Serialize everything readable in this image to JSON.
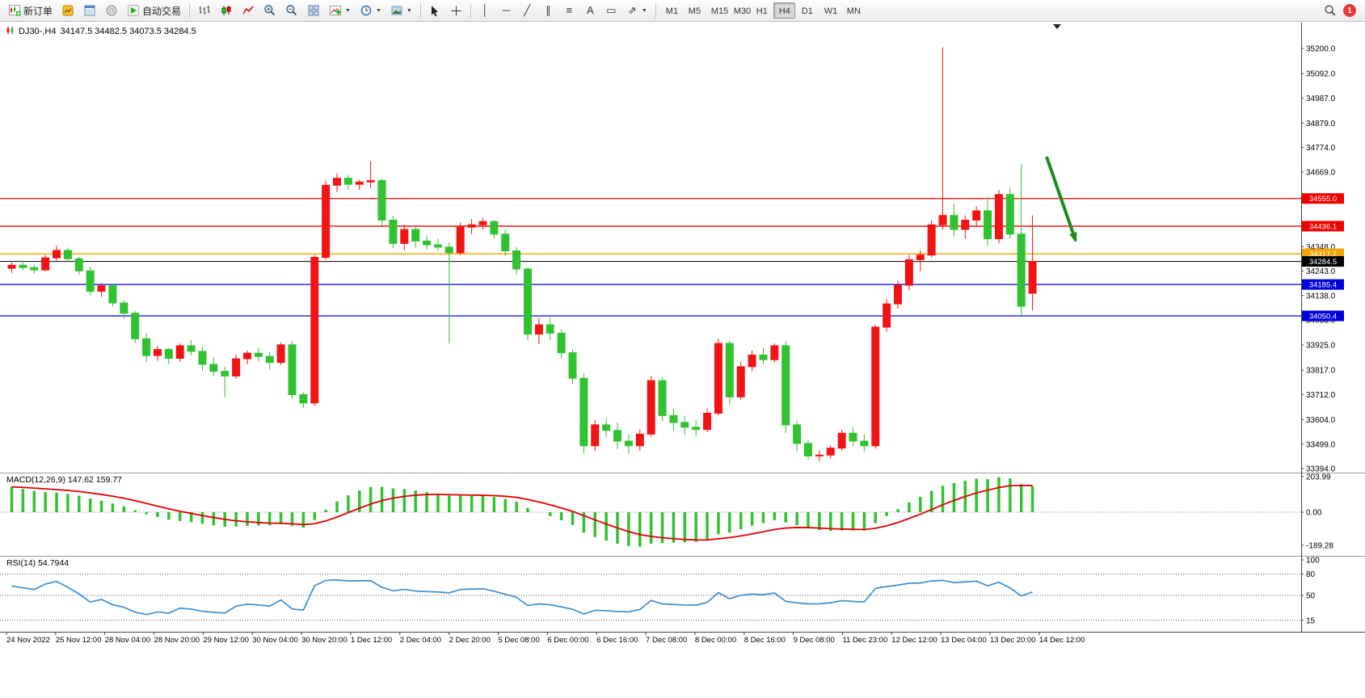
{
  "toolbar": {
    "new_order": "新订单",
    "autotrading": "自动交易",
    "timeframes": [
      "M1",
      "M5",
      "M15",
      "M30",
      "H1",
      "H4",
      "D1",
      "W1",
      "MN"
    ],
    "active_timeframe": "H4",
    "notification_count": "1"
  },
  "chart": {
    "title_symbol": "DJ30-,H4",
    "title_ohlc": "34147.5 34482.5 34073.5 34284.5",
    "price_axis_labels": [
      "35200.0",
      "35092.0",
      "34987.0",
      "34879.0",
      "34774.0",
      "34669.0",
      "34348.0",
      "34243.0",
      "34138.0",
      "34033.0",
      "33925.0",
      "33817.0",
      "33712.0",
      "33604.0",
      "33499.0",
      "33394.0"
    ],
    "time_axis_labels": [
      "24 Nov 2022",
      "25 Nov 12:00",
      "28 Nov 04:00",
      "28 Nov 20:00",
      "29 Nov 12:00",
      "30 Nov 04:00",
      "30 Nov 20:00",
      "1 Dec 12:00",
      "2 Dec 04:00",
      "2 Dec 20:00",
      "5 Dec 08:00",
      "6 Dec 00:00",
      "6 Dec 16:00",
      "7 Dec 08:00",
      "8 Dec 00:00",
      "8 Dec 16:00",
      "9 Dec 08:00",
      "11 Dec 23:00",
      "12 Dec 12:00",
      "13 Dec 04:00",
      "13 Dec 20:00",
      "14 Dec 12:00"
    ],
    "hlines": [
      {
        "value": 34555.0,
        "label": "34555.0",
        "color": "#ee0000"
      },
      {
        "value": 34436.1,
        "label": "34436.1",
        "color": "#ee0000"
      },
      {
        "value": 34317.2,
        "label": "34317.2",
        "color": "#f0a500"
      },
      {
        "value": 34284.5,
        "label": "34284.5",
        "color": "#000000"
      },
      {
        "value": 34185.4,
        "label": "34185.4",
        "color": "#0000dd"
      },
      {
        "value": 34050.4,
        "label": "34050.4",
        "color": "#0000dd"
      }
    ],
    "arrow_annotation": {
      "description": "green arrow pointing down-right",
      "color": "#1e8a1e"
    }
  },
  "macd": {
    "label": "MACD(12,26,9) 147.62 159.77",
    "params": [
      12,
      26,
      9
    ],
    "scale_labels": [
      "203.99",
      "0.00",
      "-189.28"
    ],
    "histogram_color": "#2fc32f",
    "signal_color": "#e00000"
  },
  "rsi": {
    "label": "RSI(14) 54.7944",
    "params": [
      14
    ],
    "axis_labels": [
      "100",
      "80",
      "50",
      "15"
    ],
    "level_lines": [
      80,
      50,
      15
    ],
    "line_color": "#3f8fd2"
  },
  "chart_data": {
    "type": "candlestick",
    "symbol": "DJ30-",
    "timeframe": "H4",
    "up_color": "#f21414",
    "down_color": "#2fc32f",
    "ylim": [
      33394,
      35200
    ],
    "candles": [
      [
        34255,
        34280,
        34235,
        34268
      ],
      [
        34268,
        34288,
        34248,
        34258
      ],
      [
        34258,
        34272,
        34232,
        34248
      ],
      [
        34248,
        34312,
        34242,
        34300
      ],
      [
        34300,
        34352,
        34288,
        34332
      ],
      [
        34332,
        34344,
        34282,
        34296
      ],
      [
        34296,
        34304,
        34228,
        34244
      ],
      [
        34244,
        34262,
        34140,
        34156
      ],
      [
        34156,
        34192,
        34132,
        34180
      ],
      [
        34180,
        34186,
        34092,
        34106
      ],
      [
        34106,
        34118,
        34038,
        34062
      ],
      [
        34062,
        34072,
        33932,
        33952
      ],
      [
        33952,
        33976,
        33852,
        33880
      ],
      [
        33880,
        33922,
        33858,
        33906
      ],
      [
        33906,
        33912,
        33844,
        33868
      ],
      [
        33868,
        33932,
        33854,
        33922
      ],
      [
        33922,
        33946,
        33880,
        33898
      ],
      [
        33898,
        33916,
        33814,
        33842
      ],
      [
        33842,
        33872,
        33790,
        33812
      ],
      [
        33812,
        33832,
        33702,
        33792
      ],
      [
        33792,
        33882,
        33780,
        33866
      ],
      [
        33866,
        33902,
        33842,
        33890
      ],
      [
        33890,
        33912,
        33854,
        33876
      ],
      [
        33876,
        33896,
        33820,
        33850
      ],
      [
        33850,
        33936,
        33840,
        33926
      ],
      [
        33926,
        33942,
        33694,
        33712
      ],
      [
        33712,
        33722,
        33654,
        33676
      ],
      [
        33676,
        34312,
        33664,
        34302
      ],
      [
        34302,
        34632,
        34292,
        34612
      ],
      [
        34612,
        34662,
        34582,
        34642
      ],
      [
        34642,
        34656,
        34594,
        34616
      ],
      [
        34616,
        34636,
        34592,
        34626
      ],
      [
        34626,
        34715,
        34600,
        34632
      ],
      [
        34632,
        34642,
        34438,
        34462
      ],
      [
        34462,
        34482,
        34342,
        34362
      ],
      [
        34362,
        34442,
        34332,
        34422
      ],
      [
        34422,
        34432,
        34344,
        34372
      ],
      [
        34372,
        34396,
        34338,
        34356
      ],
      [
        34356,
        34382,
        34328,
        34346
      ],
      [
        34346,
        34366,
        33932,
        34322
      ],
      [
        34322,
        34452,
        34312,
        34432
      ],
      [
        34432,
        34466,
        34402,
        34442
      ],
      [
        34442,
        34472,
        34420,
        34456
      ],
      [
        34456,
        34462,
        34382,
        34402
      ],
      [
        34402,
        34422,
        34308,
        34330
      ],
      [
        34330,
        34346,
        34228,
        34252
      ],
      [
        34252,
        34262,
        33946,
        33972
      ],
      [
        33972,
        34042,
        33930,
        34012
      ],
      [
        34012,
        34042,
        33948,
        33976
      ],
      [
        33976,
        33992,
        33868,
        33892
      ],
      [
        33892,
        33906,
        33758,
        33782
      ],
      [
        33782,
        33802,
        33458,
        33492
      ],
      [
        33492,
        33602,
        33470,
        33582
      ],
      [
        33582,
        33612,
        33528,
        33558
      ],
      [
        33558,
        33592,
        33478,
        33512
      ],
      [
        33512,
        33542,
        33458,
        33492
      ],
      [
        33492,
        33562,
        33470,
        33542
      ],
      [
        33542,
        33792,
        33530,
        33772
      ],
      [
        33772,
        33786,
        33598,
        33622
      ],
      [
        33622,
        33652,
        33558,
        33592
      ],
      [
        33592,
        33622,
        33538,
        33572
      ],
      [
        33572,
        33602,
        33532,
        33562
      ],
      [
        33562,
        33652,
        33550,
        33632
      ],
      [
        33632,
        33952,
        33622,
        33932
      ],
      [
        33932,
        33942,
        33668,
        33702
      ],
      [
        33702,
        33852,
        33690,
        33832
      ],
      [
        33832,
        33902,
        33812,
        33882
      ],
      [
        33882,
        33912,
        33842,
        33862
      ],
      [
        33862,
        33932,
        33850,
        33922
      ],
      [
        33922,
        33942,
        33548,
        33582
      ],
      [
        33582,
        33602,
        33468,
        33502
      ],
      [
        33502,
        33516,
        33432,
        33448
      ],
      [
        33448,
        33472,
        33426,
        33452
      ],
      [
        33452,
        33492,
        33438,
        33482
      ],
      [
        33482,
        33562,
        33470,
        33546
      ],
      [
        33546,
        33572,
        33490,
        33512
      ],
      [
        33512,
        33542,
        33468,
        33492
      ],
      [
        33492,
        34012,
        33480,
        34002
      ],
      [
        34002,
        34122,
        33982,
        34102
      ],
      [
        34102,
        34202,
        34082,
        34182
      ],
      [
        34182,
        34312,
        34162,
        34292
      ],
      [
        34292,
        34332,
        34242,
        34312
      ],
      [
        34312,
        34462,
        34302,
        34442
      ],
      [
        34442,
        35205,
        34422,
        34482
      ],
      [
        34482,
        34532,
        34392,
        34422
      ],
      [
        34422,
        34482,
        34382,
        34462
      ],
      [
        34462,
        34522,
        34432,
        34502
      ],
      [
        34502,
        34562,
        34352,
        34382
      ],
      [
        34382,
        34592,
        34362,
        34572
      ],
      [
        34572,
        34602,
        34382,
        34402
      ],
      [
        34402,
        34702,
        34052,
        34092
      ],
      [
        34147.5,
        34482.5,
        34073.5,
        34284.5
      ]
    ]
  }
}
